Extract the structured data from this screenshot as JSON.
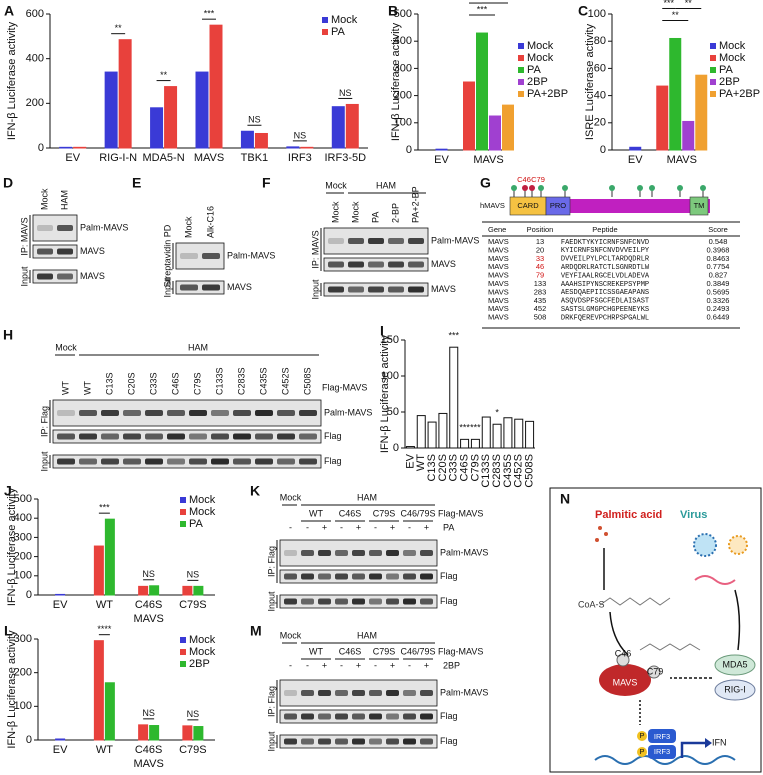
{
  "chart_data": [
    {
      "type": "bar",
      "panel": "A",
      "ylabel": "IFN-β Luciferase activity",
      "categories": [
        "EV",
        "RIG-I-N",
        "MDA5-N",
        "MAVS",
        "TBK1",
        "IRF3",
        "IRF3-5D"
      ],
      "series": [
        {
          "name": "Mock",
          "color": "#3a3ad6",
          "values": [
            3,
            340,
            180,
            340,
            75,
            5,
            185
          ]
        },
        {
          "name": "PA",
          "color": "#e8413c",
          "values": [
            3,
            485,
            275,
            550,
            65,
            3,
            195
          ]
        }
      ],
      "ylim": [
        0,
        600
      ],
      "yticks": [
        0,
        200,
        400,
        600
      ],
      "legend": "upper right",
      "annotations": [
        "**",
        "**",
        "***",
        "NS",
        "NS",
        "NS"
      ]
    },
    {
      "type": "bar",
      "panel": "B",
      "ylabel": "IFN-β Luciferase activity",
      "categories": [
        "EV",
        "MAVS"
      ],
      "series": [
        {
          "name": "Mock",
          "color": "#3a3ad6",
          "values": [
            3,
            null
          ]
        },
        {
          "name": "Mock",
          "color": "#e8413c",
          "values": [
            null,
            250
          ]
        },
        {
          "name": "PA",
          "color": "#2eb82e",
          "values": [
            null,
            430
          ]
        },
        {
          "name": "2BP",
          "color": "#a040d0",
          "values": [
            null,
            125
          ]
        },
        {
          "name": "PA+2BP",
          "color": "#f0a030",
          "values": [
            null,
            165
          ]
        }
      ],
      "ylim": [
        0,
        500
      ],
      "yticks": [
        0,
        100,
        200,
        300,
        400,
        500
      ],
      "legend": "upper right",
      "annotations": [
        "***",
        "***",
        "***"
      ]
    },
    {
      "type": "bar",
      "panel": "C",
      "ylabel": "ISRE Luciferase activity",
      "categories": [
        "EV",
        "MAVS"
      ],
      "series": [
        {
          "name": "Mock",
          "color": "#3a3ad6",
          "values": [
            2,
            null
          ]
        },
        {
          "name": "Mock",
          "color": "#e8413c",
          "values": [
            null,
            47
          ]
        },
        {
          "name": "PA",
          "color": "#2eb82e",
          "values": [
            null,
            82
          ]
        },
        {
          "name": "2BP",
          "color": "#a040d0",
          "values": [
            null,
            21
          ]
        },
        {
          "name": "PA+2BP",
          "color": "#f0a030",
          "values": [
            null,
            55
          ]
        }
      ],
      "ylim": [
        0,
        100
      ],
      "yticks": [
        0,
        20,
        40,
        60,
        80,
        100
      ],
      "legend": "upper right",
      "annotations": [
        "***",
        "**",
        "**"
      ]
    },
    {
      "type": "bar",
      "panel": "I",
      "ylabel": "IFN-β Luciferase activity",
      "categories": [
        "EV",
        "WT",
        "C13S",
        "C20S",
        "C33S",
        "C46S",
        "C79S",
        "C133S",
        "C283S",
        "C435S",
        "C452S",
        "C508S"
      ],
      "values": [
        2,
        45,
        36,
        48,
        140,
        12,
        12,
        43,
        33,
        42,
        40,
        37
      ],
      "color": "#ffffff",
      "ylim": [
        0,
        150
      ],
      "yticks": [
        0,
        50,
        100,
        150
      ],
      "xtick_rotation": 90,
      "annotations": [
        "***",
        "***",
        "***",
        "*"
      ]
    },
    {
      "type": "bar",
      "panel": "J",
      "ylabel": "IFN-β Luciferase activity",
      "categories": [
        "EV",
        "WT",
        "C46S",
        "C79S"
      ],
      "group_label": "MAVS",
      "series": [
        {
          "name": "Mock",
          "color": "#3a3ad6",
          "values": [
            3,
            null,
            null,
            null
          ]
        },
        {
          "name": "Mock",
          "color": "#e8413c",
          "values": [
            null,
            255,
            45,
            45
          ]
        },
        {
          "name": "PA",
          "color": "#2eb82e",
          "values": [
            null,
            395,
            48,
            45
          ]
        }
      ],
      "ylim": [
        0,
        500
      ],
      "yticks": [
        0,
        100,
        200,
        300,
        400,
        500
      ],
      "legend": "upper right",
      "annotations": [
        "***",
        "NS",
        "NS"
      ]
    },
    {
      "type": "bar",
      "panel": "L",
      "ylabel": "IFN-β Luciferase activity",
      "categories": [
        "EV",
        "WT",
        "C46S",
        "C79S"
      ],
      "group_label": "MAVS",
      "series": [
        {
          "name": "Mock",
          "color": "#3a3ad6",
          "values": [
            3,
            null,
            null,
            null
          ]
        },
        {
          "name": "Mock",
          "color": "#e8413c",
          "values": [
            null,
            295,
            45,
            42
          ]
        },
        {
          "name": "2BP",
          "color": "#2eb82e",
          "values": [
            null,
            170,
            43,
            40
          ]
        }
      ],
      "ylim": [
        0,
        300
      ],
      "yticks": [
        0,
        100,
        200,
        300
      ],
      "legend": "upper right",
      "annotations": [
        "****",
        "NS",
        "NS"
      ]
    }
  ],
  "blots": [
    {
      "panel": "D",
      "headers": [],
      "lanes": [
        "Mock",
        "HAM"
      ],
      "rows": [
        "Palm-MAVS",
        "MAVS",
        "MAVS"
      ],
      "side": [
        "IP: MAVS",
        "Input"
      ]
    },
    {
      "panel": "E",
      "headers": [],
      "lanes": [
        "Mock",
        "Alk-C16"
      ],
      "rows": [
        "Palm-MAVS",
        "MAVS"
      ],
      "side": [
        "Streptavidin PD",
        "Input"
      ]
    },
    {
      "panel": "F",
      "headers": [
        "Mock",
        "HAM"
      ],
      "lanes": [
        "Mock",
        "Mock",
        "PA",
        "2-BP",
        "PA+2-BP"
      ],
      "rows": [
        "Palm-MAVS",
        "MAVS",
        "MAVS"
      ],
      "side": [
        "IP: MAVS",
        "Input"
      ]
    },
    {
      "panel": "H",
      "headers": [
        "Mock",
        "HAM"
      ],
      "lanes": [
        "WT",
        "WT",
        "C13S",
        "C20S",
        "C33S",
        "C46S",
        "C79S",
        "C133S",
        "C283S",
        "C435S",
        "C452S",
        "C508S"
      ],
      "lane_caption": "Flag-MAVS",
      "rows": [
        "Palm-MAVS",
        "Flag",
        "Flag"
      ],
      "side": [
        "IP: Flag",
        "Input"
      ]
    },
    {
      "panel": "K",
      "headers": [
        "Mock",
        "HAM"
      ],
      "lanes": [
        "WT",
        "C46S",
        "C79S",
        "C46/79S"
      ],
      "lane_caption": "Flag-MAVS",
      "treatment": "PA",
      "signs": [
        "-",
        "-",
        "+",
        "-",
        "+",
        "-",
        "+",
        "-",
        "+"
      ],
      "rows": [
        "Palm-MAVS",
        "Flag",
        "Flag"
      ],
      "side": [
        "IP: Flag",
        "Input"
      ]
    },
    {
      "panel": "M",
      "headers": [
        "Mock",
        "HAM"
      ],
      "lanes": [
        "WT",
        "C46S",
        "C79S",
        "C46/79S"
      ],
      "lane_caption": "Flag-MAVS",
      "treatment": "2BP",
      "signs": [
        "-",
        "-",
        "+",
        "-",
        "+",
        "-",
        "+",
        "-",
        "+"
      ],
      "rows": [
        "Palm-MAVS",
        "Flag",
        "Flag"
      ],
      "side": [
        "IP: Flag",
        "Input"
      ]
    }
  ],
  "panel_g": {
    "panel": "G",
    "protein": "hMAVS",
    "domains": [
      "CARD",
      "PRO",
      "TM"
    ],
    "sites": [
      "C46",
      "C79"
    ],
    "table": {
      "columns": [
        "Gene",
        "Position",
        "Peptide",
        "Score"
      ],
      "rows": [
        [
          "MAVS",
          13,
          "FAEDKTYKYICRNFSNFCNVD",
          0.548
        ],
        [
          "MAVS",
          20,
          "KYICRNFSNFCNVDVVEILPY",
          0.3968
        ],
        [
          "MAVS",
          33,
          "DVVEILPYLPCLTARDQDRLR",
          0.8463
        ],
        [
          "MAVS",
          46,
          "ARDQDRLRATCTLSGNRDTLW",
          0.7754
        ],
        [
          "MAVS",
          79,
          "VEYFIAALRGCELVDLADEVA",
          0.827
        ],
        [
          "MAVS",
          133,
          "AAAHSIPYNSCREKEPSYPMP",
          0.3849
        ],
        [
          "MAVS",
          283,
          "AESDQAEPIICSSGAEAPANS",
          0.5695
        ],
        [
          "MAVS",
          435,
          "ASQVDSPFSGCFEDLAISAST",
          0.3326
        ],
        [
          "MAVS",
          452,
          "SASTSLGMGPCHGPEENEYKS",
          0.2493
        ],
        [
          "MAVS",
          508,
          "DRKFQEREVPCHRPSPGALWL",
          0.6449
        ]
      ]
    }
  },
  "panel_n": {
    "panel": "N",
    "labels": [
      "Palmitic acid",
      "Virus",
      "CoA-S",
      "C46",
      "C79",
      "MAVS",
      "MDA5",
      "RIG-I",
      "P",
      "IRF3",
      "P",
      "IRF3",
      "IFN"
    ]
  }
}
